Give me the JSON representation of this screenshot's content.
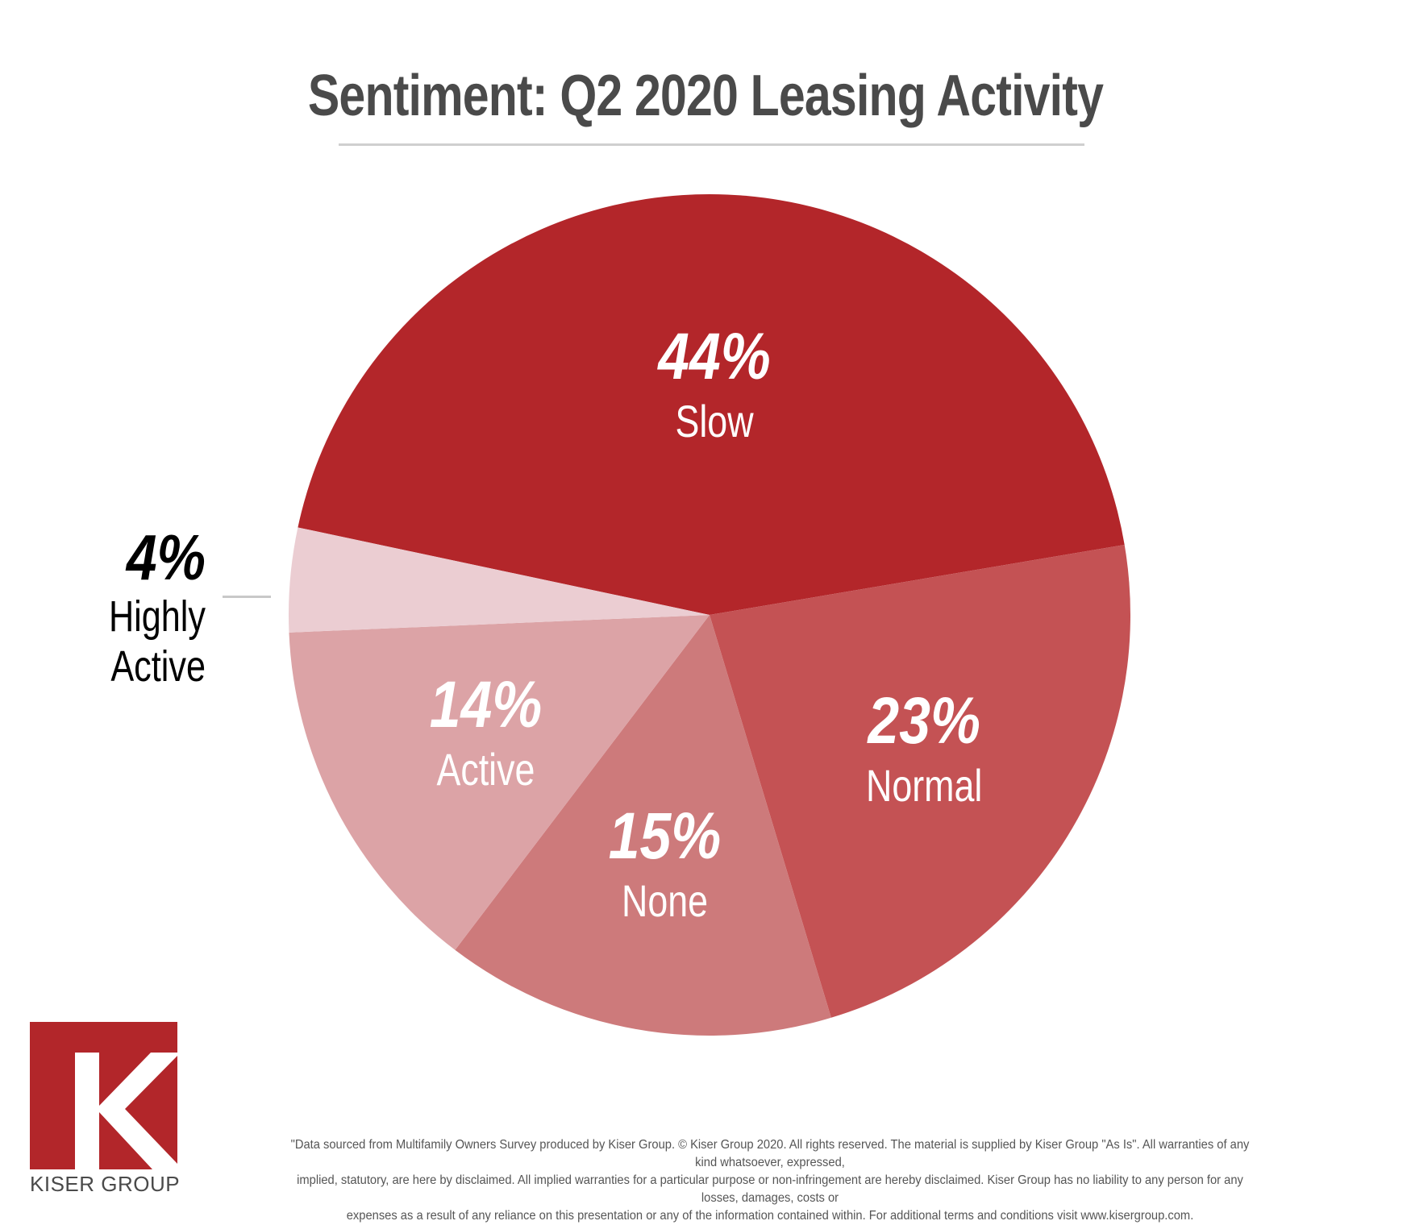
{
  "title": "Sentiment: Q2 2020 Leasing Activity",
  "colors": {
    "title": "#4a4a4a",
    "brand_red": "#b2262a",
    "rule": "#cfcfcf"
  },
  "chart_data": {
    "type": "pie",
    "title": "Sentiment: Q2 2020 Leasing Activity",
    "slices": [
      {
        "label": "Slow",
        "value": 44,
        "display": "44%",
        "color": "#b3262a",
        "label_placement": "inside"
      },
      {
        "label": "Normal",
        "value": 23,
        "display": "23%",
        "color": "#c45254",
        "label_placement": "inside"
      },
      {
        "label": "None",
        "value": 15,
        "display": "15%",
        "color": "#cd7a7b",
        "label_placement": "inside"
      },
      {
        "label": "Active",
        "value": 14,
        "display": "14%",
        "color": "#dca3a6",
        "label_placement": "inside"
      },
      {
        "label": "Highly Active",
        "value": 4,
        "display": "4%",
        "color": "#ebcdd2",
        "label_placement": "outside-left"
      }
    ],
    "legend": "none",
    "grid": false
  },
  "outside_label": {
    "pct": "4%",
    "name_line1": "Highly",
    "name_line2": "Active"
  },
  "logo": {
    "letter": "K",
    "text": "KISER GROUP"
  },
  "disclaimer": {
    "line1": "\"Data sourced from Multifamily Owners Survey produced by Kiser Group. © Kiser Group 2020. All rights reserved. The material is supplied by Kiser Group \"As Is\". All warranties of any kind whatsoever, expressed,",
    "line2": "implied, statutory, are here by disclaimed. All implied warranties for a particular purpose or non-infringement are hereby disclaimed. Kiser Group has no liability to any person for any losses, damages, costs or",
    "line3": "expenses as a result of any reliance on this presentation or any of the information contained within. For additional terms and conditions visit www.kisergroup.com."
  }
}
